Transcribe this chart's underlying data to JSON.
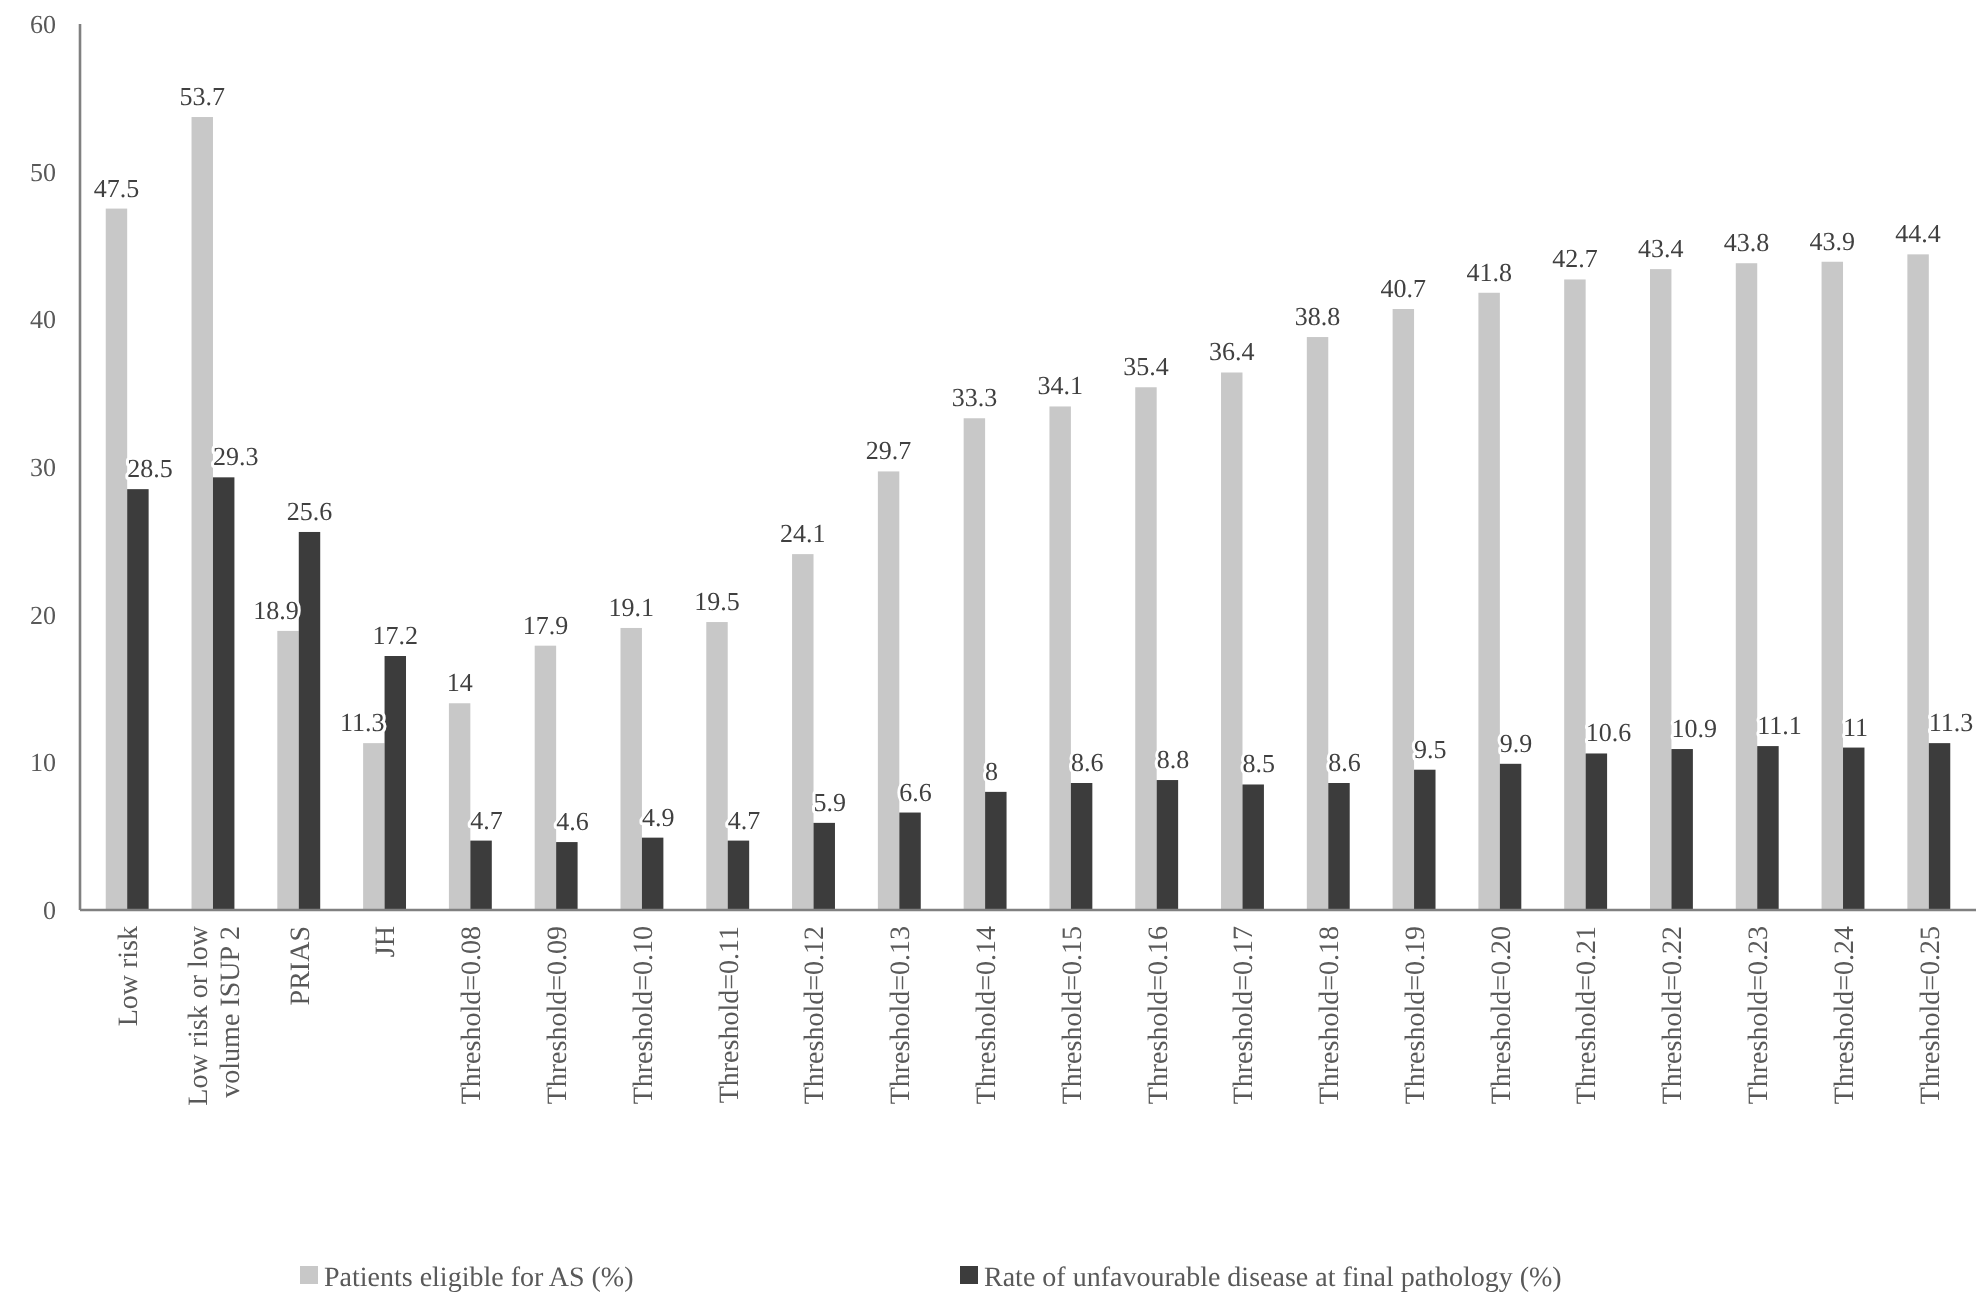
{
  "chart_data": {
    "type": "bar",
    "categories": [
      "Low risk",
      "Low risk or low volume ISUP 2",
      "PRIAS",
      "JH",
      "Threshold=0.08",
      "Threshold=0.09",
      "Threshold=0.10",
      "Threshold=0.11",
      "Threshold=0.12",
      "Threshold=0.13",
      "Threshold=0.14",
      "Threshold=0.15",
      "Threshold=0.16",
      "Threshold=0.17",
      "Threshold=0.18",
      "Threshold=0.19",
      "Threshold=0.20",
      "Threshold=0.21",
      "Threshold=0.22",
      "Threshold=0.23",
      "Threshold=0.24",
      "Threshold=0.25"
    ],
    "series": [
      {
        "name": "Patients eligible for AS (%)",
        "color": "#c8c8c8",
        "values": [
          47.5,
          53.7,
          18.9,
          11.3,
          14,
          17.9,
          19.1,
          19.5,
          24.1,
          29.7,
          33.3,
          34.1,
          35.4,
          36.4,
          38.8,
          40.7,
          41.8,
          42.7,
          43.4,
          43.8,
          43.9,
          44.4
        ]
      },
      {
        "name": "Rate of unfavourable disease at final pathology (%)",
        "color": "#3c3c3c",
        "values": [
          28.5,
          29.3,
          25.6,
          17.2,
          4.7,
          4.6,
          4.9,
          4.7,
          5.9,
          6.6,
          8,
          8.6,
          8.8,
          8.5,
          8.6,
          9.5,
          9.9,
          10.6,
          10.9,
          11.1,
          11,
          11.3
        ]
      }
    ],
    "ylim": [
      0,
      60
    ],
    "yticks": [
      0,
      10,
      20,
      30,
      40,
      50,
      60
    ],
    "grid": false,
    "legend": "bottom",
    "data_labels": true
  }
}
